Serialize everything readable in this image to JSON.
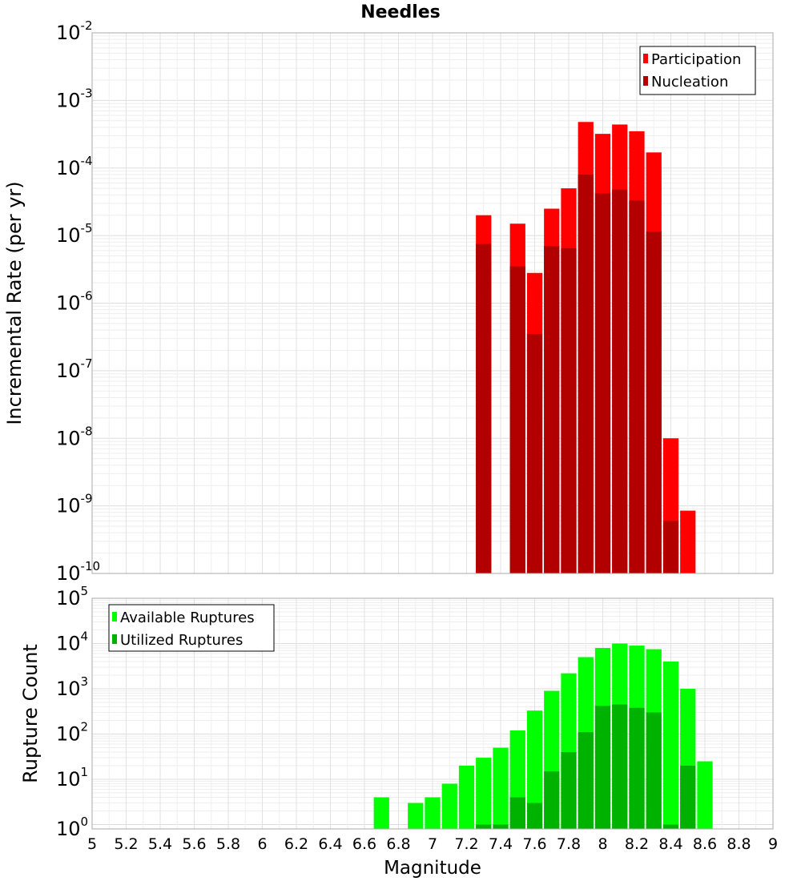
{
  "chart_data": [
    {
      "type": "bar",
      "title": "Needles",
      "ylabel": "Incremental Rate (per yr)",
      "xlabel": "",
      "ylog": true,
      "ylim": [
        1e-10,
        0.01
      ],
      "xlim": [
        5,
        9
      ],
      "grid": true,
      "legend": "top-right",
      "series": [
        {
          "name": "Participation",
          "color": "#ff0000",
          "x": [
            7.3,
            7.5,
            7.6,
            7.7,
            7.8,
            7.9,
            8.0,
            8.1,
            8.2,
            8.3,
            8.4,
            8.5
          ],
          "values": [
            2e-05,
            1.5e-05,
            2.8e-06,
            2.5e-05,
            5e-05,
            0.00048,
            0.00032,
            0.00044,
            0.00035,
            0.00017,
            1e-08,
            8.5e-10
          ]
        },
        {
          "name": "Nucleation",
          "color": "#b20000",
          "x": [
            7.3,
            7.5,
            7.6,
            7.7,
            7.8,
            7.9,
            8.0,
            8.1,
            8.2,
            8.3,
            8.4
          ],
          "values": [
            7.5e-06,
            3.5e-06,
            3.5e-07,
            7e-06,
            6.5e-06,
            8e-05,
            4.2e-05,
            4.8e-05,
            3.3e-05,
            1.15e-05,
            6e-10
          ]
        }
      ]
    },
    {
      "type": "bar",
      "title": "",
      "ylabel": "Rupture Count",
      "xlabel": "Magnitude",
      "ylog": true,
      "ylim": [
        0.8,
        100000.0
      ],
      "xlim": [
        5,
        9
      ],
      "xticks": [
        "5",
        "5.2",
        "5.4",
        "5.6",
        "5.8",
        "6",
        "6.2",
        "6.4",
        "6.6",
        "6.8",
        "7",
        "7.2",
        "7.4",
        "7.6",
        "7.8",
        "8",
        "8.2",
        "8.4",
        "8.6",
        "8.8",
        "9"
      ],
      "grid": true,
      "legend": "top-left",
      "series": [
        {
          "name": "Available Ruptures",
          "color": "#00ff00",
          "x": [
            6.7,
            6.9,
            7.0,
            7.1,
            7.2,
            7.3,
            7.4,
            7.5,
            7.6,
            7.7,
            7.8,
            7.9,
            8.0,
            8.1,
            8.2,
            8.3,
            8.4,
            8.5,
            8.6
          ],
          "values": [
            4,
            3,
            4,
            8,
            20,
            30,
            50,
            120,
            330,
            900,
            2200,
            5000,
            8000,
            10000,
            9000,
            7500,
            4000,
            1000,
            25
          ]
        },
        {
          "name": "Utilized Ruptures",
          "color": "#00b200",
          "x": [
            7.3,
            7.4,
            7.5,
            7.6,
            7.7,
            7.8,
            7.9,
            8.0,
            8.1,
            8.2,
            8.3,
            8.4,
            8.5
          ],
          "values": [
            1,
            1,
            4,
            3,
            15,
            40,
            110,
            420,
            450,
            380,
            300,
            1,
            20
          ]
        }
      ]
    }
  ]
}
